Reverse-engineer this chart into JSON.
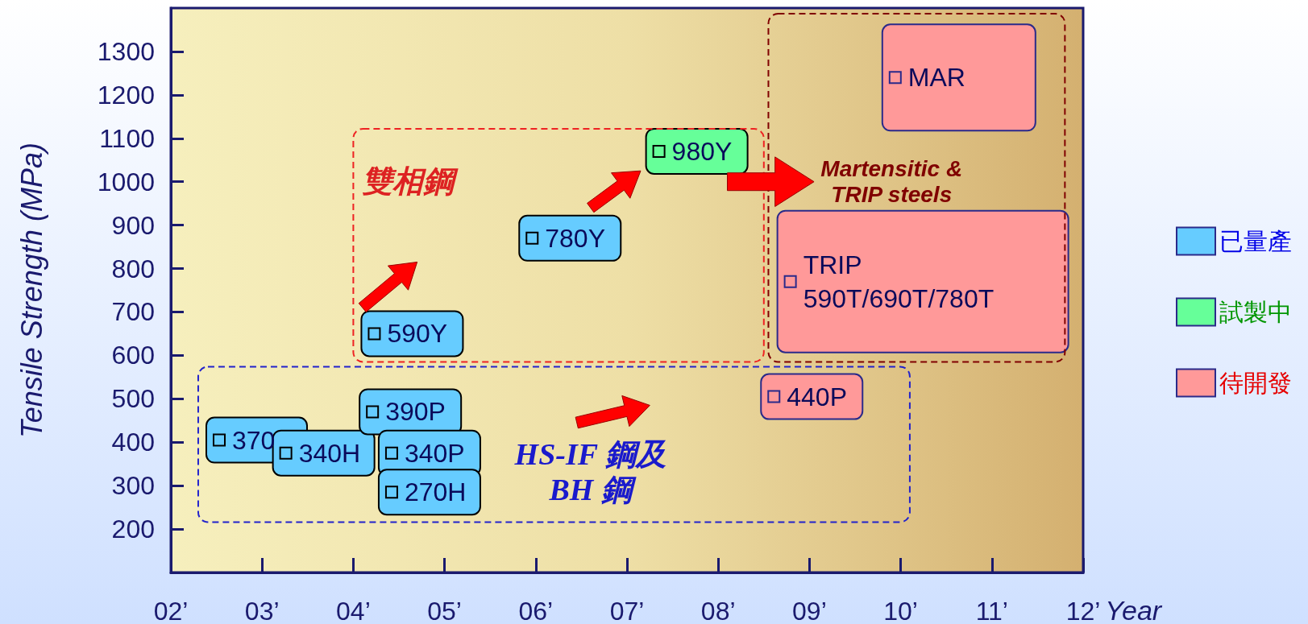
{
  "chart_data": {
    "type": "scatter",
    "xlabel": "Year",
    "ylabel": "Tensile Strength (MPa)",
    "xlim": [
      2,
      12
    ],
    "xticks": [
      {
        "value": 2,
        "label": "02’"
      },
      {
        "value": 3,
        "label": "03’"
      },
      {
        "value": 4,
        "label": "04’"
      },
      {
        "value": 5,
        "label": "05’"
      },
      {
        "value": 6,
        "label": "06’"
      },
      {
        "value": 7,
        "label": "07’"
      },
      {
        "value": 8,
        "label": "08’"
      },
      {
        "value": 9,
        "label": "09’"
      },
      {
        "value": 10,
        "label": "10’"
      },
      {
        "value": 11,
        "label": "11’"
      },
      {
        "value": 12,
        "label": "12’"
      }
    ],
    "ylim": [
      100,
      1400
    ],
    "yticks": [
      200,
      300,
      400,
      500,
      600,
      700,
      800,
      900,
      1000,
      1100,
      1200,
      1300
    ],
    "marker": "square",
    "grid": false,
    "legend": "right",
    "series": [
      {
        "name": "已量產",
        "color": "#66ccff",
        "x": [
          2.53,
          3.26,
          4.21,
          4.42,
          4.42,
          4.23,
          5.96
        ],
        "values": [
          405,
          375,
          470,
          375,
          285,
          650,
          870
        ]
      },
      {
        "name": "試製中",
        "color": "#66ff99",
        "x": [
          7.35
        ],
        "values": [
          1070
        ]
      },
      {
        "name": "待開發",
        "color": "#ff9999",
        "x": [
          8.61,
          8.79,
          9.94
        ],
        "values": [
          505,
          770,
          1240
        ]
      }
    ],
    "annotations": [
      {
        "text": "370",
        "x": 2.53,
        "y": 405
      },
      {
        "text": "340H",
        "x": 3.26,
        "y": 375
      },
      {
        "text": "390P",
        "x": 4.21,
        "y": 470
      },
      {
        "text": "340P",
        "x": 4.42,
        "y": 375
      },
      {
        "text": "270H",
        "x": 4.42,
        "y": 285
      },
      {
        "text": "590Y",
        "x": 4.23,
        "y": 650
      },
      {
        "text": "780Y",
        "x": 5.96,
        "y": 870
      },
      {
        "text": "980Y",
        "x": 7.35,
        "y": 1070
      },
      {
        "text": "440P",
        "x": 8.61,
        "y": 505
      },
      {
        "text": "TRIP\n590T/690T/780T",
        "x": 8.79,
        "y": 770
      },
      {
        "text": "MAR",
        "x": 9.94,
        "y": 1240
      },
      "雙相鋼",
      "Martensitic &\nTRIP steels",
      "HS-IF 鋼及\nBH 鋼"
    ]
  }
}
